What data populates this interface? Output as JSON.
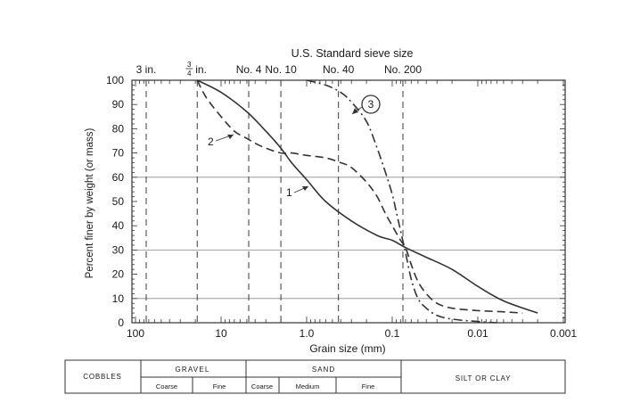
{
  "chart_data": {
    "type": "line",
    "title": "U.S. Standard sieve size",
    "xlabel": "Grain size (mm)",
    "ylabel": "Percent finer by weight (or mass)",
    "x_scale": "log",
    "x_reversed": true,
    "xlim": [
      100,
      0.001
    ],
    "ylim": [
      0,
      100
    ],
    "x_ticks": [
      100,
      10,
      1.0,
      0.1,
      0.01,
      0.001
    ],
    "x_tick_labels": [
      "100",
      "10",
      "1.0",
      "0.1",
      "0.01",
      "0.001"
    ],
    "y_ticks": [
      0,
      10,
      20,
      30,
      40,
      50,
      60,
      70,
      80,
      90,
      100
    ],
    "y_tick_labels": [
      "0",
      "10",
      "20",
      "30",
      "40",
      "50",
      "60",
      "70",
      "80",
      "90",
      "100"
    ],
    "grid_y": [
      10,
      30,
      60
    ],
    "sieves": [
      {
        "label": "3 in.",
        "size": 75
      },
      {
        "label": "¾ in.",
        "size": 19
      },
      {
        "label": "No. 4",
        "size": 4.75
      },
      {
        "label": "No. 10",
        "size": 2.0
      },
      {
        "label": "No. 40",
        "size": 0.425
      },
      {
        "label": "No. 200",
        "size": 0.075
      }
    ],
    "series": [
      {
        "name": "1",
        "style": "solid",
        "x": [
          19,
          10,
          5,
          3,
          2,
          1.5,
          1.0,
          0.6,
          0.3,
          0.15,
          0.1,
          0.07,
          0.04,
          0.02,
          0.01,
          0.005,
          0.002
        ],
        "y": [
          100,
          95,
          87,
          79,
          72,
          66,
          59,
          50,
          42,
          36,
          34,
          31,
          27,
          22,
          15,
          9,
          4
        ]
      },
      {
        "name": "2",
        "style": "dashed",
        "x": [
          19,
          15,
          10,
          7,
          5,
          4,
          3,
          2,
          1.5,
          1.0,
          0.6,
          0.4,
          0.3,
          0.2,
          0.15,
          0.12,
          0.1,
          0.08,
          0.07,
          0.06,
          0.05,
          0.04,
          0.03,
          0.02,
          0.01,
          0.005,
          0.003
        ],
        "y": [
          100,
          93,
          85,
          79,
          76,
          74,
          72,
          70,
          70,
          69,
          68,
          66,
          64,
          58,
          52,
          45,
          40,
          34,
          31,
          24,
          17,
          12,
          8,
          6,
          5,
          4.5,
          4
        ]
      },
      {
        "name": "3",
        "style": "dashdot",
        "x": [
          1.0,
          0.6,
          0.4,
          0.3,
          0.2,
          0.15,
          0.12,
          0.1,
          0.09,
          0.08,
          0.07,
          0.06,
          0.05,
          0.04,
          0.03,
          0.02,
          0.01,
          0.006
        ],
        "y": [
          100,
          98,
          95,
          91,
          83,
          72,
          62,
          53,
          46,
          38,
          29,
          18,
          10,
          6,
          3,
          1.5,
          0.5,
          0
        ]
      }
    ],
    "annotations": [
      "1",
      "2",
      "3"
    ]
  },
  "classification": {
    "cobbles": "COBBLES",
    "gravel": "GRAVEL",
    "gravel_coarse": "Coarse",
    "gravel_fine": "Fine",
    "sand": "SAND",
    "sand_coarse": "Coarse",
    "sand_medium": "Medium",
    "sand_fine": "Fine",
    "silt_clay": "SILT OR CLAY"
  }
}
